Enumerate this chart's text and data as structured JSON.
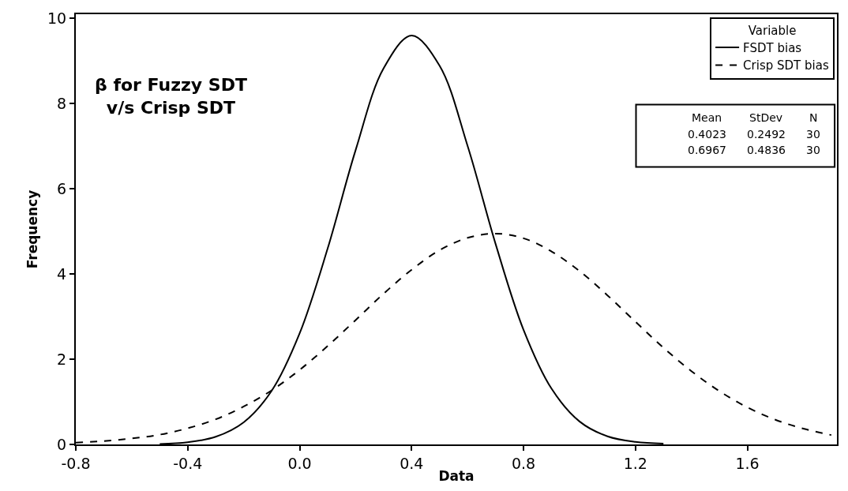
{
  "chart_data": {
    "type": "line",
    "xlabel": "Data",
    "ylabel": "Frequency",
    "legend_title": "Variable",
    "legend": "top right",
    "marker": "none",
    "xlim": [
      -0.8,
      1.92
    ],
    "xticks": [
      {
        "value": -0.8,
        "label": "-0.8"
      },
      {
        "value": -0.4,
        "label": "-0.4"
      },
      {
        "value": 0.0,
        "label": "0.0"
      },
      {
        "value": 0.4,
        "label": "0.4"
      },
      {
        "value": 0.8,
        "label": "0.8"
      },
      {
        "value": 1.2,
        "label": "1.2"
      },
      {
        "value": 1.6,
        "label": "1.6"
      }
    ],
    "ylim": [
      0,
      10.1
    ],
    "yticks": [
      0,
      2,
      4,
      6,
      8,
      10
    ],
    "series": [
      {
        "name": "FSDT bias",
        "color": "#000000",
        "line_style": "solid",
        "x": [
          -0.5,
          -0.4,
          -0.3,
          -0.2,
          -0.1,
          0.0,
          0.1,
          0.2,
          0.3,
          0.4,
          0.5,
          0.6,
          0.7,
          0.8,
          0.9,
          1.0,
          1.1,
          1.2,
          1.3
        ],
        "values": [
          0.01,
          0.05,
          0.18,
          0.52,
          1.26,
          2.61,
          4.6,
          6.91,
          8.83,
          9.6,
          8.89,
          7.01,
          4.71,
          2.69,
          1.31,
          0.54,
          0.19,
          0.06,
          0.02
        ]
      },
      {
        "name": "Crisp SDT bias",
        "color": "#000000",
        "line_style": "dashed",
        "x": [
          -0.8,
          -0.7,
          -0.6,
          -0.5,
          -0.4,
          -0.3,
          -0.2,
          -0.1,
          0.0,
          0.1,
          0.2,
          0.3,
          0.4,
          0.5,
          0.6,
          0.7,
          0.8,
          0.9,
          1.0,
          1.1,
          1.2,
          1.3,
          1.4,
          1.5,
          1.6,
          1.7,
          1.8,
          1.9
        ],
        "values": [
          0.04,
          0.08,
          0.14,
          0.23,
          0.38,
          0.59,
          0.89,
          1.27,
          1.75,
          2.31,
          2.92,
          3.54,
          4.1,
          4.56,
          4.85,
          4.95,
          4.84,
          4.53,
          4.07,
          3.5,
          2.88,
          2.27,
          1.72,
          1.25,
          0.87,
          0.58,
          0.37,
          0.22
        ]
      }
    ],
    "annotations": [
      "β for Fuzzy SDT\nv/s Crisp SDT",
      "Mean",
      "StDev",
      "N",
      "0.4023",
      "0.2492",
      "30",
      "0.6967",
      "0.4836",
      "30"
    ]
  }
}
